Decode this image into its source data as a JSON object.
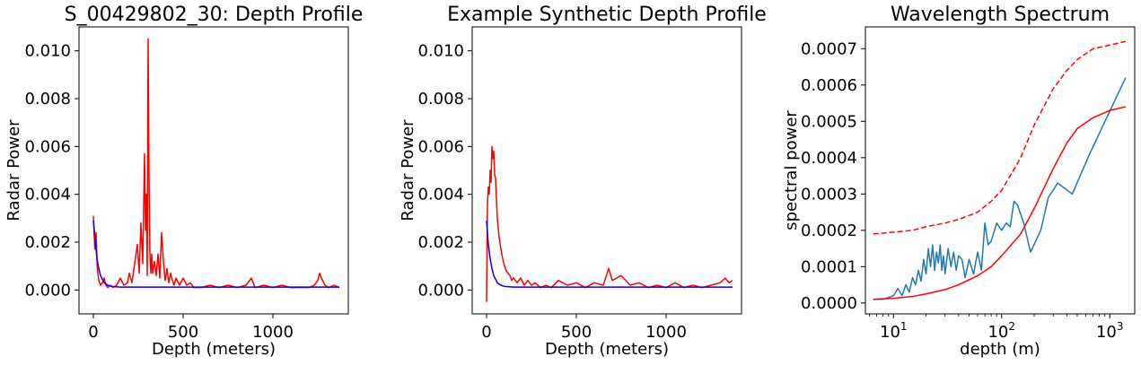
{
  "chart_data": [
    {
      "type": "line",
      "title": "S_00429802_30: Depth Profile",
      "xlabel": "Depth (meters)",
      "ylabel": "Radar Power",
      "xlim": [
        -80,
        1420
      ],
      "ylim": [
        -0.001,
        0.011
      ],
      "xticks": [
        0,
        500,
        1000
      ],
      "xtick_labels": [
        "0",
        "500",
        "1000"
      ],
      "yticks": [
        0.0,
        0.002,
        0.004,
        0.006,
        0.008,
        0.01
      ],
      "ytick_labels": [
        "0.000",
        "0.002",
        "0.004",
        "0.006",
        "0.008",
        "0.010"
      ],
      "grid": false,
      "series": [
        {
          "color": "#ff0000",
          "style": "solid",
          "x": [
            0,
            8,
            15,
            22,
            30,
            40,
            50,
            60,
            70,
            80,
            95,
            110,
            130,
            150,
            170,
            190,
            200,
            215,
            230,
            245,
            255,
            265,
            275,
            285,
            290,
            295,
            300,
            305,
            310,
            315,
            320,
            325,
            330,
            340,
            350,
            360,
            370,
            380,
            390,
            400,
            410,
            420,
            430,
            440,
            450,
            460,
            480,
            500,
            520,
            540,
            560,
            600,
            650,
            700,
            750,
            800,
            850,
            880,
            900,
            950,
            1000,
            1050,
            1100,
            1150,
            1200,
            1230,
            1250,
            1260,
            1270,
            1290,
            1310,
            1340,
            1370
          ],
          "y": [
            0.0031,
            0.0017,
            0.0024,
            0.0009,
            0.0004,
            0.0002,
            0.0003,
            0.0005,
            0.0002,
            0.0001,
            0.0002,
            0.0001,
            0.0002,
            0.0005,
            0.0002,
            0.0003,
            0.0007,
            0.0003,
            0.0011,
            0.0019,
            0.0007,
            0.0028,
            0.0011,
            0.0057,
            0.0025,
            0.004,
            0.0006,
            0.0105,
            0.0047,
            0.0015,
            0.0007,
            0.0015,
            0.0007,
            0.0012,
            0.0006,
            0.0015,
            0.0005,
            0.0024,
            0.0012,
            0.0004,
            0.0009,
            0.0003,
            0.0007,
            0.0004,
            0.0002,
            0.0005,
            0.0002,
            0.0005,
            0.0002,
            0.0003,
            0.0001,
            0.0001,
            0.0002,
            0.0001,
            0.0002,
            0.0001,
            0.0002,
            0.0005,
            0.0001,
            0.0002,
            0.0001,
            0.0002,
            0.0001,
            0.0001,
            0.0001,
            0.0002,
            0.0004,
            0.0007,
            0.0005,
            0.0002,
            0.0001,
            0.0002,
            0.0001
          ]
        },
        {
          "color": "#0000ff",
          "style": "solid",
          "x": [
            0,
            10,
            20,
            30,
            40,
            60,
            80,
            100,
            150,
            200,
            300,
            500,
            800,
            1000,
            1200,
            1370
          ],
          "y": [
            0.0029,
            0.0021,
            0.0013,
            0.0009,
            0.0006,
            0.0003,
            0.0002,
            0.00015,
            0.00012,
            0.00012,
            0.00012,
            0.00012,
            0.00012,
            0.00012,
            0.00012,
            0.00012
          ]
        }
      ]
    },
    {
      "type": "line",
      "title": "Example Synthetic Depth Profile",
      "xlabel": "Depth (meters)",
      "ylabel": "Radar Power",
      "xlim": [
        -80,
        1420
      ],
      "ylim": [
        -0.001,
        0.011
      ],
      "xticks": [
        0,
        500,
        1000
      ],
      "xtick_labels": [
        "0",
        "500",
        "1000"
      ],
      "yticks": [
        0.0,
        0.002,
        0.004,
        0.006,
        0.008,
        0.01
      ],
      "ytick_labels": [
        "0.000",
        "0.002",
        "0.004",
        "0.006",
        "0.008",
        "0.010"
      ],
      "grid": false,
      "series": [
        {
          "color": "#ff0000",
          "style": "solid",
          "x": [
            0,
            5,
            10,
            15,
            20,
            25,
            30,
            35,
            40,
            45,
            50,
            55,
            60,
            70,
            80,
            90,
            100,
            110,
            120,
            130,
            140,
            150,
            170,
            190,
            210,
            230,
            250,
            270,
            300,
            330,
            360,
            400,
            450,
            500,
            550,
            600,
            650,
            680,
            700,
            750,
            800,
            850,
            900,
            950,
            1000,
            1050,
            1100,
            1150,
            1200,
            1250,
            1300,
            1330,
            1350,
            1370
          ],
          "y": [
            -0.0005,
            0.0036,
            0.0043,
            0.004,
            0.005,
            0.0045,
            0.006,
            0.0055,
            0.0058,
            0.0048,
            0.0047,
            0.0038,
            0.003,
            0.0022,
            0.0017,
            0.0013,
            0.001,
            0.0008,
            0.0007,
            0.0006,
            0.0004,
            0.0005,
            0.0003,
            0.0005,
            0.0002,
            0.0004,
            0.0002,
            0.0003,
            0.0001,
            0.0002,
            0.0001,
            0.0004,
            0.0002,
            0.0003,
            0.0001,
            0.0003,
            0.0002,
            0.0009,
            0.0004,
            0.0006,
            0.0002,
            0.0003,
            0.0001,
            0.0002,
            0.0001,
            0.0003,
            0.0001,
            0.0002,
            0.0001,
            0.0002,
            0.0003,
            0.0005,
            0.0003,
            0.0004
          ]
        },
        {
          "color": "#0000ff",
          "style": "solid",
          "x": [
            0,
            5,
            10,
            20,
            30,
            40,
            60,
            80,
            100,
            150,
            200,
            300,
            500,
            800,
            1000,
            1200,
            1370
          ],
          "y": [
            0.0029,
            0.0024,
            0.0019,
            0.0013,
            0.0009,
            0.0006,
            0.0003,
            0.0002,
            0.00015,
            0.00012,
            0.00012,
            0.00012,
            0.00012,
            0.00012,
            0.00012,
            0.00012,
            0.00012
          ]
        }
      ]
    },
    {
      "type": "line",
      "title": "Wavelength Spectrum",
      "xlabel": "depth (m)",
      "ylabel": "spectral power",
      "xscale": "log",
      "xlim": [
        5.5,
        1700
      ],
      "ylim": [
        -3e-05,
        0.00076
      ],
      "xticks": [
        10,
        100,
        1000
      ],
      "xtick_labels": [
        [
          "10",
          "1"
        ],
        [
          "10",
          "2"
        ],
        [
          "10",
          "3"
        ]
      ],
      "yticks": [
        0.0,
        0.0001,
        0.0002,
        0.0003,
        0.0004,
        0.0005,
        0.0006,
        0.0007
      ],
      "ytick_labels": [
        "0.0000",
        "0.0001",
        "0.0002",
        "0.0003",
        "0.0004",
        "0.0005",
        "0.0006",
        "0.0007"
      ],
      "grid": false,
      "series": [
        {
          "color": "#1f77b4",
          "style": "solid",
          "x": [
            6.5,
            8,
            10,
            11,
            12,
            13,
            14,
            15,
            16,
            17,
            18,
            19,
            20,
            21,
            22,
            23,
            24,
            25,
            26,
            27,
            28,
            29,
            30,
            32,
            34,
            36,
            38,
            40,
            43,
            46,
            50,
            55,
            60,
            65,
            70,
            75,
            80,
            90,
            100,
            110,
            120,
            130,
            140,
            160,
            185,
            230,
            270,
            330,
            450,
            650,
            1400
          ],
          "y": [
            1e-05,
            1e-05,
            2e-05,
            4e-05,
            2e-05,
            5e-05,
            3e-05,
            7e-05,
            5e-05,
            9e-05,
            6e-05,
            0.00012,
            8e-05,
            0.00015,
            0.0001,
            0.00016,
            9e-05,
            0.00014,
            0.00011,
            0.00016,
            9e-05,
            0.00013,
            8e-05,
            0.00015,
            0.0001,
            0.00014,
            9e-05,
            0.00013,
            0.00012,
            7e-05,
            0.00012,
            8e-05,
            0.00014,
            9e-05,
            0.00022,
            0.00016,
            0.00017,
            0.00022,
            0.0002,
            0.00022,
            0.00021,
            0.00028,
            0.00027,
            0.00022,
            0.00014,
            0.0002,
            0.00029,
            0.00033,
            0.0003,
            0.00041,
            0.00062
          ]
        },
        {
          "color": "#ff0000",
          "style": "solid",
          "x": [
            6.5,
            10,
            15,
            20,
            30,
            40,
            60,
            80,
            100,
            150,
            200,
            300,
            400,
            500,
            700,
            1000,
            1400
          ],
          "y": [
            1e-05,
            1.3e-05,
            1.8e-05,
            2.5e-05,
            3.7e-05,
            5e-05,
            7.5e-05,
            0.0001,
            0.00013,
            0.00019,
            0.00026,
            0.00037,
            0.00044,
            0.00048,
            0.00051,
            0.00053,
            0.00054
          ]
        },
        {
          "color": "#ff0000",
          "style": "dashed",
          "x": [
            6.5,
            10,
            15,
            20,
            30,
            40,
            60,
            80,
            100,
            150,
            200,
            300,
            400,
            500,
            700,
            1000,
            1400
          ],
          "y": [
            0.00019,
            0.000195,
            0.0002,
            0.00021,
            0.00022,
            0.00023,
            0.00025,
            0.00028,
            0.00031,
            0.0004,
            0.00049,
            0.00059,
            0.00064,
            0.00067,
            0.0007,
            0.00071,
            0.00072
          ]
        }
      ]
    }
  ]
}
